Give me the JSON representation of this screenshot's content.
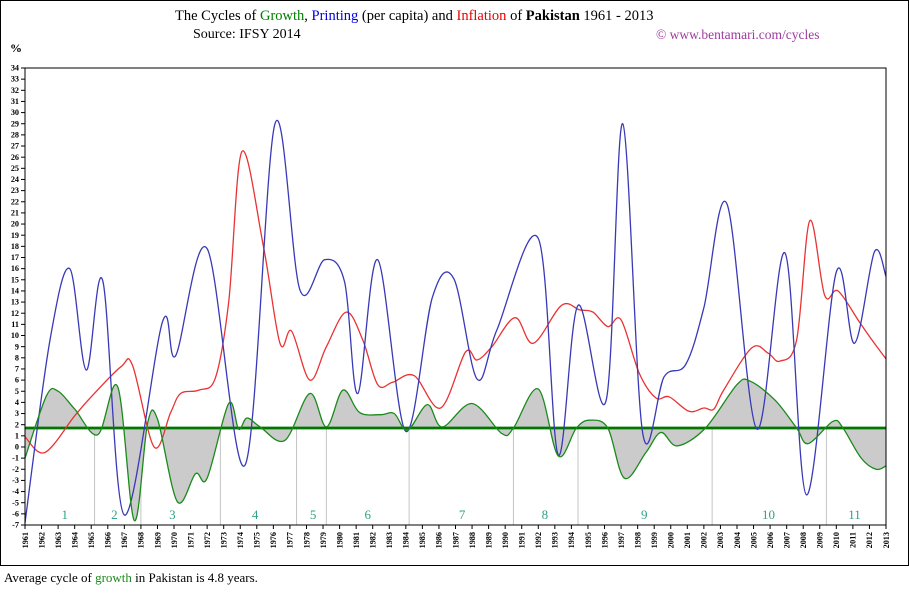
{
  "header": {
    "title_segments": [
      {
        "text": "The Cycles of ",
        "color": "#000000",
        "bold": false
      },
      {
        "text": "Growth",
        "color": "#008000",
        "bold": false
      },
      {
        "text": ", ",
        "color": "#000000",
        "bold": false
      },
      {
        "text": "Printing",
        "color": "#0000e0",
        "bold": false
      },
      {
        "text": " (per capita) and ",
        "color": "#000000",
        "bold": false
      },
      {
        "text": "Inflation",
        "color": "#e80000",
        "bold": false
      },
      {
        "text": " of ",
        "color": "#000000",
        "bold": false
      },
      {
        "text": "Pakistan",
        "color": "#000000",
        "bold": true
      },
      {
        "text": " 1961 - 2013",
        "color": "#000000",
        "bold": false
      }
    ]
  },
  "caption": {
    "segments": [
      {
        "text": "Average cycle of ",
        "color": "#000000"
      },
      {
        "text": "growth",
        "color": "#1a8a1a"
      },
      {
        "text": " in Pakistan is 4.8 years.",
        "color": "#000000"
      }
    ]
  },
  "colors": {
    "growth_line": "#1a8a1a",
    "printing_line": "#3939b8",
    "inflation_line": "#e93333",
    "average_line": "#007800",
    "area_fill": "#cbcbcb",
    "cycle_boundary": "#c4c4c4",
    "cycle_label": "#2fa287",
    "copyright_text": "#9e3a9e",
    "axis": "#000000"
  },
  "chart_data": {
    "type": "line",
    "title": "The Cycles of Growth, Printing (per capita) and Inflation of Pakistan 1961 - 2013",
    "source": "Source: IFSY 2014",
    "copyright": "© www.bentamari.com/cycles",
    "ylabel": "%",
    "xlim": [
      1961,
      2013
    ],
    "ylim": [
      -7,
      34
    ],
    "x_tick_step": 1,
    "y_tick_step": 1,
    "grid": "off",
    "legend": "in-title",
    "average_growth_value": 1.7,
    "series": [
      {
        "name": "Growth",
        "color": "#1a8a1a",
        "points": [
          [
            1961.0,
            -1.0
          ],
          [
            1962.3,
            4.6
          ],
          [
            1963.0,
            5.0
          ],
          [
            1964.0,
            3.4
          ],
          [
            1965.4,
            1.1
          ],
          [
            1966.6,
            5.4
          ],
          [
            1967.6,
            -6.6
          ],
          [
            1968.4,
            2.1
          ],
          [
            1969.0,
            2.5
          ],
          [
            1970.2,
            -4.9
          ],
          [
            1971.3,
            -2.4
          ],
          [
            1972.0,
            -2.8
          ],
          [
            1973.3,
            3.9
          ],
          [
            1973.9,
            1.6
          ],
          [
            1974.4,
            2.6
          ],
          [
            1975.2,
            1.8
          ],
          [
            1976.7,
            0.6
          ],
          [
            1978.2,
            4.8
          ],
          [
            1979.2,
            1.8
          ],
          [
            1980.2,
            5.1
          ],
          [
            1981.2,
            3.1
          ],
          [
            1982.5,
            2.9
          ],
          [
            1983.3,
            3.0
          ],
          [
            1984.1,
            1.5
          ],
          [
            1985.3,
            3.8
          ],
          [
            1986.2,
            1.8
          ],
          [
            1988.0,
            3.9
          ],
          [
            1989.8,
            1.2
          ],
          [
            1990.5,
            1.7
          ],
          [
            1992.0,
            5.2
          ],
          [
            1993.2,
            -0.8
          ],
          [
            1994.3,
            1.7
          ],
          [
            1995.1,
            2.4
          ],
          [
            1996.2,
            1.7
          ],
          [
            1997.2,
            -2.8
          ],
          [
            1998.5,
            -0.5
          ],
          [
            1999.4,
            1.3
          ],
          [
            2000.4,
            0.1
          ],
          [
            2002.1,
            1.7
          ],
          [
            2004.0,
            5.6
          ],
          [
            2004.8,
            5.9
          ],
          [
            2006.3,
            4.2
          ],
          [
            2007.6,
            1.7
          ],
          [
            2008.3,
            0.3
          ],
          [
            2009.8,
            2.3
          ],
          [
            2010.4,
            1.7
          ],
          [
            2011.5,
            -1.0
          ],
          [
            2012.4,
            -2.0
          ],
          [
            2013.0,
            -1.7
          ]
        ]
      },
      {
        "name": "Printing",
        "color": "#3939b8",
        "points": [
          [
            1961.0,
            -6.8
          ],
          [
            1962.5,
            9.5
          ],
          [
            1963.7,
            16.0
          ],
          [
            1964.7,
            6.9
          ],
          [
            1965.7,
            14.9
          ],
          [
            1967.0,
            -6.1
          ],
          [
            1969.3,
            11.2
          ],
          [
            1970.1,
            8.2
          ],
          [
            1972.0,
            17.8
          ],
          [
            1974.3,
            -1.6
          ],
          [
            1976.1,
            29.0
          ],
          [
            1977.6,
            14.1
          ],
          [
            1979.1,
            16.8
          ],
          [
            1980.3,
            14.8
          ],
          [
            1981.1,
            4.8
          ],
          [
            1982.3,
            16.8
          ],
          [
            1984.0,
            1.4
          ],
          [
            1985.6,
            13.4
          ],
          [
            1986.9,
            15.1
          ],
          [
            1988.3,
            6.1
          ],
          [
            1989.5,
            10.5
          ],
          [
            1992.0,
            18.7
          ],
          [
            1993.2,
            -0.7
          ],
          [
            1994.4,
            12.7
          ],
          [
            1996.1,
            4.2
          ],
          [
            1997.1,
            29.0
          ],
          [
            1998.3,
            1.3
          ],
          [
            1999.6,
            6.3
          ],
          [
            2000.9,
            7.4
          ],
          [
            2002.0,
            12.5
          ],
          [
            2003.4,
            21.8
          ],
          [
            2005.2,
            1.6
          ],
          [
            2006.9,
            17.4
          ],
          [
            2008.2,
            -4.3
          ],
          [
            2010.0,
            15.7
          ],
          [
            2011.1,
            9.3
          ],
          [
            2012.3,
            17.5
          ],
          [
            2013.0,
            15.3
          ]
        ]
      },
      {
        "name": "Inflation",
        "color": "#e93333",
        "points": [
          [
            1961.0,
            0.9
          ],
          [
            1962.2,
            -0.5
          ],
          [
            1964.0,
            2.8
          ],
          [
            1965.0,
            4.5
          ],
          [
            1966.8,
            7.2
          ],
          [
            1967.5,
            7.3
          ],
          [
            1968.8,
            0.0
          ],
          [
            1969.8,
            3.1
          ],
          [
            1970.4,
            4.8
          ],
          [
            1971.5,
            5.1
          ],
          [
            1972.5,
            6.2
          ],
          [
            1973.3,
            13.0
          ],
          [
            1974.1,
            26.5
          ],
          [
            1975.4,
            18.0
          ],
          [
            1976.4,
            9.3
          ],
          [
            1977.1,
            10.4
          ],
          [
            1978.2,
            6.0
          ],
          [
            1979.2,
            9.0
          ],
          [
            1980.4,
            12.1
          ],
          [
            1981.4,
            9.6
          ],
          [
            1982.3,
            5.6
          ],
          [
            1983.2,
            5.8
          ],
          [
            1984.5,
            6.4
          ],
          [
            1986.1,
            3.5
          ],
          [
            1987.6,
            8.5
          ],
          [
            1988.3,
            7.8
          ],
          [
            1989.2,
            9.0
          ],
          [
            1990.6,
            11.6
          ],
          [
            1991.7,
            9.3
          ],
          [
            1993.4,
            12.7
          ],
          [
            1994.5,
            12.3
          ],
          [
            1995.3,
            12.1
          ],
          [
            1996.2,
            10.8
          ],
          [
            1997.0,
            11.4
          ],
          [
            1998.1,
            6.6
          ],
          [
            1999.1,
            4.4
          ],
          [
            1999.9,
            4.5
          ],
          [
            2001.1,
            3.2
          ],
          [
            2002.0,
            3.5
          ],
          [
            2002.6,
            3.4
          ],
          [
            2003.2,
            5.1
          ],
          [
            2004.9,
            8.9
          ],
          [
            2005.9,
            8.4
          ],
          [
            2006.6,
            7.7
          ],
          [
            2007.6,
            9.6
          ],
          [
            2008.4,
            20.3
          ],
          [
            2009.3,
            13.6
          ],
          [
            2010.1,
            14.0
          ],
          [
            2011.4,
            11.2
          ],
          [
            2012.2,
            9.5
          ],
          [
            2013.0,
            7.9
          ]
        ]
      }
    ],
    "cycles": {
      "boundaries_years": [
        1965.2,
        1968.0,
        1972.8,
        1977.4,
        1979.2,
        1984.2,
        1990.5,
        1994.4,
        2002.5,
        2009.4
      ],
      "labels": [
        {
          "n": "1",
          "year": 1963.4
        },
        {
          "n": "2",
          "year": 1966.4
        },
        {
          "n": "3",
          "year": 1969.9
        },
        {
          "n": "4",
          "year": 1974.9
        },
        {
          "n": "5",
          "year": 1978.4
        },
        {
          "n": "6",
          "year": 1981.7
        },
        {
          "n": "7",
          "year": 1987.4
        },
        {
          "n": "8",
          "year": 1992.4
        },
        {
          "n": "9",
          "year": 1998.4
        },
        {
          "n": "10",
          "year": 2005.9
        },
        {
          "n": "11",
          "year": 2011.1
        }
      ]
    }
  }
}
